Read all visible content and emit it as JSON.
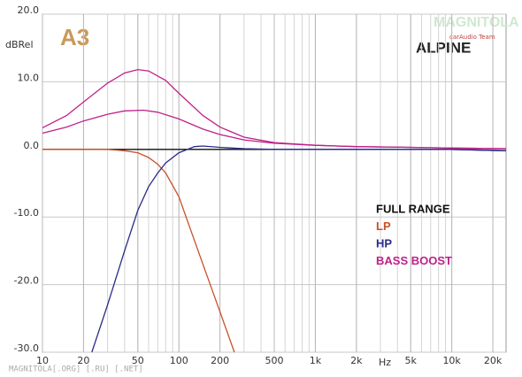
{
  "chart_data": {
    "type": "line",
    "y_label": "dBRel",
    "x_label": "Hz",
    "brand": "ALPINE",
    "badge": "A3",
    "logo": "MAGNITOLA",
    "logo_sub": "carAudio Team",
    "footer": "MAGNITOLA[.ORG] [.RU] [.NET]",
    "xscale": "log",
    "grid": true,
    "xlim": [
      10,
      25000
    ],
    "ylim": [
      -30,
      20
    ],
    "xticks": [
      10,
      20,
      50,
      100,
      200,
      500,
      {
        "value": 1000,
        "label": "1k"
      },
      {
        "value": 2000,
        "label": "2k"
      },
      {
        "value": 5000,
        "label": "5k"
      },
      {
        "value": 10000,
        "label": "10k"
      },
      {
        "value": 20000,
        "label": "20k"
      }
    ],
    "yticks": [
      {
        "value": 20,
        "label": "20.0"
      },
      {
        "value": 10,
        "label": "10.0"
      },
      {
        "value": 0,
        "label": "0.0"
      },
      {
        "value": -10,
        "label": "-10.0"
      },
      {
        "value": -20,
        "label": "-20.0"
      },
      {
        "value": -30,
        "label": "-30.0"
      }
    ],
    "series": [
      {
        "name": "FULL RANGE",
        "color": "#111111",
        "x": [
          10,
          100,
          1000,
          10000,
          25000
        ],
        "values": [
          0,
          0,
          0,
          0,
          -0.2
        ]
      },
      {
        "name": "LP",
        "color": "#c8502a",
        "x": [
          10,
          20,
          30,
          40,
          50,
          60,
          70,
          80,
          100,
          120,
          150,
          200,
          255
        ],
        "values": [
          0,
          0,
          0,
          -0.2,
          -0.5,
          -1.2,
          -2.2,
          -3.5,
          -7,
          -11.5,
          -17,
          -24,
          -30
        ]
      },
      {
        "name": "HP",
        "color": "#2a2a8a",
        "x": [
          23,
          30,
          40,
          50,
          60,
          70,
          80,
          100,
          130,
          150,
          200,
          300,
          500,
          1000,
          10000,
          25000
        ],
        "values": [
          -30,
          -23,
          -15,
          -9,
          -5.5,
          -3.5,
          -2,
          -0.5,
          0.4,
          0.5,
          0.3,
          0.1,
          0,
          0,
          0,
          -0.2
        ]
      },
      {
        "name": "BASS BOOST",
        "color": "#c0208a",
        "x": [
          10,
          15,
          20,
          30,
          40,
          50,
          60,
          80,
          100,
          150,
          200,
          300,
          500,
          1000,
          2000,
          5000,
          10000,
          25000
        ],
        "values": [
          3.2,
          5,
          7,
          9.8,
          11.3,
          11.8,
          11.6,
          10.2,
          8.3,
          5,
          3.3,
          1.8,
          1,
          0.6,
          0.4,
          0.3,
          0.2,
          0.1
        ]
      },
      {
        "color": "#c0208a",
        "x": [
          10,
          15,
          20,
          30,
          40,
          55,
          70,
          100,
          150,
          200,
          300,
          500,
          1000,
          2000,
          5000,
          10000,
          25000
        ],
        "values": [
          2.4,
          3.3,
          4.2,
          5.2,
          5.7,
          5.8,
          5.5,
          4.5,
          3,
          2.2,
          1.4,
          0.9,
          0.6,
          0.4,
          0.3,
          0.2,
          0.1
        ]
      }
    ]
  }
}
